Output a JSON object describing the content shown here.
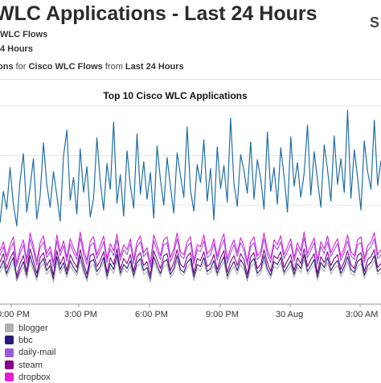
{
  "header": {
    "title": "WLC Applications - Last 24 Hours",
    "corner_mark": "S",
    "subtitle_1": "WLC Flows",
    "subtitle_2": "4 Hours",
    "desc": {
      "part1": "ons",
      "part2": " for ",
      "part3": "Cisco WLC Flows",
      "part4": " from ",
      "part5": "Last 24 Hours"
    }
  },
  "chart_data": {
    "type": "line",
    "title": "Top 10 Cisco WLC Applications",
    "xlabel": "",
    "ylabel": "",
    "x_tick_labels": [
      "0:00 PM",
      "3:00 PM",
      "6:00 PM",
      "9:00 PM",
      "30 Aug",
      "3:00 AM"
    ],
    "grid": true,
    "legend_position": "bottom-left",
    "series": [
      {
        "name": "steam",
        "color": "#8b008b",
        "values": [
          4.2,
          5.1,
          3.6,
          4.6,
          5.3,
          2.8,
          4.1,
          4.9,
          3.3,
          5.6,
          4.4,
          3.1,
          4.7,
          5.2,
          3.9,
          4.5,
          2.9,
          5.4,
          4.0,
          4.8,
          3.4,
          5.0,
          4.3,
          3.7,
          5.5,
          4.2,
          3.0,
          4.9,
          5.1,
          3.8,
          4.4,
          5.3,
          3.2,
          4.7,
          4.0,
          5.6,
          3.5,
          4.6,
          4.1,
          5.0,
          3.3,
          4.8,
          5.2,
          3.9,
          4.3,
          2.9,
          5.4,
          4.5,
          3.6,
          4.9,
          5.1,
          3.4,
          4.2,
          5.5,
          4.0,
          3.7,
          4.8,
          5.2,
          3.1,
          4.6,
          4.4,
          5.3,
          3.8,
          4.1,
          5.0,
          3.5,
          4.7,
          5.4,
          3.2,
          4.3,
          4.9,
          3.9,
          5.1,
          4.5,
          3.0,
          4.8,
          5.2,
          3.6,
          4.0,
          5.5,
          4.2,
          3.3,
          4.9,
          4.6,
          5.3,
          3.7,
          4.4,
          5.0,
          3.4,
          4.7,
          4.1,
          5.6,
          3.8,
          4.5,
          5.1,
          3.1,
          4.8,
          4.2,
          5.3,
          3.9,
          4.6,
          5.0,
          3.5,
          4.3,
          5.4,
          4.0,
          3.6,
          4.9,
          5.2,
          3.3,
          4.5,
          4.8,
          5.5,
          3.7,
          4.1
        ]
      },
      {
        "name": "dropbox",
        "color": "#e020d8",
        "values": [
          5.4,
          6.3,
          4.8,
          6.0,
          6.8,
          4.1,
          5.6,
          6.5,
          4.5,
          7.2,
          5.9,
          4.3,
          6.2,
          6.9,
          5.1,
          5.8,
          4.2,
          7.0,
          5.3,
          6.4,
          4.7,
          6.6,
          5.7,
          4.9,
          7.3,
          5.5,
          4.4,
          6.4,
          6.8,
          5.0,
          5.9,
          6.9,
          4.6,
          6.1,
          5.4,
          7.1,
          4.8,
          6.0,
          5.5,
          6.6,
          4.5,
          6.3,
          6.9,
          5.2,
          5.7,
          4.1,
          7.0,
          5.9,
          4.9,
          6.5,
          6.8,
          4.7,
          5.6,
          7.2,
          5.3,
          5.0,
          6.3,
          6.8,
          4.4,
          6.0,
          5.8,
          7.0,
          5.1,
          5.5,
          6.6,
          4.8,
          6.2,
          7.1,
          4.5,
          5.7,
          6.5,
          5.2,
          6.7,
          5.9,
          4.3,
          6.3,
          6.8,
          4.9,
          5.3,
          7.2,
          5.5,
          4.6,
          6.5,
          6.0,
          6.9,
          5.0,
          5.8,
          6.6,
          4.7,
          6.2,
          5.4,
          7.3,
          5.1,
          5.9,
          6.7,
          4.4,
          6.3,
          5.6,
          6.9,
          5.2,
          6.0,
          6.6,
          4.8,
          5.7,
          7.0,
          5.3,
          4.9,
          6.5,
          6.8,
          4.6,
          5.9,
          6.3,
          7.2,
          5.0,
          5.5
        ]
      },
      {
        "name": "daily-mail",
        "color": "#9b59e0",
        "values": [
          4.9,
          5.8,
          4.4,
          5.5,
          6.2,
          3.8,
          5.1,
          6.0,
          4.1,
          6.6,
          5.4,
          3.9,
          5.7,
          6.3,
          4.7,
          5.3,
          3.8,
          6.4,
          4.9,
          5.9,
          4.3,
          6.1,
          5.2,
          4.5,
          6.7,
          5.0,
          4.0,
          5.9,
          6.2,
          4.6,
          5.4,
          6.3,
          4.2,
          5.6,
          4.9,
          6.5,
          4.4,
          5.5,
          5.0,
          6.1,
          4.1,
          5.8,
          6.3,
          4.8,
          5.2,
          3.7,
          6.4,
          5.4,
          4.5,
          6.0,
          6.2,
          4.3,
          5.1,
          6.6,
          4.9,
          4.6,
          5.8,
          6.2,
          4.0,
          5.5,
          5.3,
          6.4,
          4.7,
          5.0,
          6.1,
          4.4,
          5.7,
          6.5,
          4.1,
          5.2,
          6.0,
          4.8,
          6.2,
          5.4,
          3.9,
          5.8,
          6.2,
          4.5,
          4.9,
          6.6,
          5.0,
          4.2,
          6.0,
          5.5,
          6.3,
          4.6,
          5.3,
          6.1,
          4.3,
          5.7,
          4.9,
          6.7,
          4.7,
          5.4,
          6.2,
          4.0,
          5.8,
          5.1,
          6.3,
          4.8,
          5.5,
          6.1,
          4.4,
          5.2,
          6.4,
          4.9,
          4.5,
          6.0,
          6.2,
          4.2,
          5.4,
          5.8,
          6.6,
          4.6,
          5.0
        ]
      },
      {
        "name": "bbc",
        "color": "#2a1a7a",
        "values": [
          3.6,
          4.4,
          3.1,
          4.0,
          4.7,
          2.5,
          3.5,
          4.3,
          2.9,
          4.9,
          3.8,
          2.7,
          4.1,
          4.6,
          3.4,
          3.9,
          2.5,
          4.8,
          3.5,
          4.2,
          3.0,
          4.4,
          3.7,
          3.2,
          4.9,
          3.6,
          2.6,
          4.3,
          4.5,
          3.3,
          3.8,
          4.7,
          2.8,
          4.1,
          3.5,
          5.0,
          3.1,
          4.0,
          3.6,
          4.4,
          2.9,
          4.2,
          4.6,
          3.4,
          3.7,
          2.5,
          4.8,
          3.9,
          3.1,
          4.3,
          4.5,
          3.0,
          3.6,
          4.9,
          3.5,
          3.2,
          4.2,
          4.6,
          2.7,
          4.0,
          3.8,
          4.7,
          3.3,
          3.6,
          4.4,
          3.1,
          4.1,
          4.8,
          2.8,
          3.7,
          4.3,
          3.4,
          4.5,
          3.9,
          2.6,
          4.2,
          4.6,
          3.1,
          3.5,
          4.9,
          3.6,
          2.9,
          4.3,
          4.0,
          4.7,
          3.2,
          3.8,
          4.4,
          3.0,
          4.1,
          3.6,
          5.0,
          3.3,
          3.9,
          4.5,
          2.7,
          4.2,
          3.7,
          4.7,
          3.4,
          4.0,
          4.4,
          3.1,
          3.8,
          4.8,
          3.5,
          3.2,
          4.3,
          4.6,
          2.9,
          3.9,
          4.2,
          4.9,
          3.3,
          3.6
        ]
      },
      {
        "name": "blogger",
        "color": "#b0b0b0",
        "values": [
          3.2,
          3.9,
          2.8,
          3.6,
          4.2,
          2.3,
          3.1,
          3.8,
          2.6,
          4.4,
          3.4,
          2.4,
          3.7,
          4.1,
          3.0,
          3.5,
          2.2,
          4.3,
          3.1,
          3.8,
          2.7,
          3.9,
          3.3,
          2.9,
          4.4,
          3.2,
          2.3,
          3.8,
          4.0,
          2.9,
          3.4,
          4.2,
          2.5,
          3.7,
          3.1,
          4.5,
          2.8,
          3.6,
          3.2,
          3.9,
          2.6,
          3.8,
          4.1,
          3.0,
          3.3,
          2.2,
          4.3,
          3.5,
          2.8,
          3.8,
          4.0,
          2.7,
          3.2,
          4.4,
          3.1,
          2.9,
          3.7,
          4.1,
          2.4,
          3.6,
          3.4,
          4.2,
          3.0,
          3.2,
          3.9,
          2.8,
          3.7,
          4.3,
          2.5,
          3.3,
          3.8,
          3.0,
          4.0,
          3.5,
          2.3,
          3.7,
          4.1,
          2.8,
          3.1,
          4.4,
          3.2,
          2.6,
          3.8,
          3.6,
          4.2,
          2.9,
          3.4,
          3.9,
          2.7,
          3.7,
          3.2,
          4.5,
          3.0,
          3.5,
          4.0,
          2.4,
          3.8,
          3.3,
          4.2,
          3.0,
          3.6,
          3.9,
          2.8,
          3.4,
          4.3,
          3.1,
          2.9,
          3.8,
          4.1,
          2.6,
          3.5,
          3.7,
          4.4,
          3.0,
          3.2
        ]
      },
      {
        "name": "",
        "color": "#1f6fa3",
        "values": [
          8.2,
          11.4,
          9.6,
          13.8,
          10.1,
          7.9,
          12.5,
          15.2,
          9.3,
          11.8,
          14.7,
          8.6,
          10.9,
          16.3,
          12.1,
          9.8,
          13.4,
          11.0,
          8.4,
          14.9,
          17.6,
          10.5,
          12.8,
          9.1,
          15.7,
          11.3,
          13.9,
          8.8,
          10.7,
          16.8,
          12.4,
          9.5,
          14.2,
          11.6,
          18.4,
          10.2,
          13.1,
          8.9,
          15.5,
          12.0,
          9.7,
          17.2,
          11.1,
          14.4,
          10.6,
          13.3,
          8.7,
          16.0,
          12.6,
          10.0,
          14.8,
          11.9,
          9.2,
          15.3,
          13.0,
          10.8,
          17.9,
          11.5,
          9.4,
          14.1,
          12.3,
          16.6,
          10.4,
          13.7,
          8.5,
          15.9,
          11.7,
          14.0,
          10.3,
          18.8,
          12.2,
          9.9,
          15.1,
          13.5,
          11.2,
          16.4,
          10.6,
          14.6,
          12.7,
          9.6,
          17.4,
          11.4,
          13.8,
          10.1,
          15.8,
          12.9,
          9.3,
          16.9,
          11.9,
          14.3,
          10.8,
          13.2,
          18.1,
          11.0,
          15.4,
          12.5,
          9.8,
          16.1,
          13.6,
          10.4,
          17.0,
          12.1,
          14.7,
          11.3,
          19.6,
          10.7,
          15.6,
          12.8,
          9.5,
          16.5,
          13.4,
          11.6,
          18.6,
          12.0,
          14.5
        ]
      }
    ],
    "legend": [
      "blogger",
      "bbc",
      "daily-mail",
      "steam",
      "dropbox"
    ]
  }
}
